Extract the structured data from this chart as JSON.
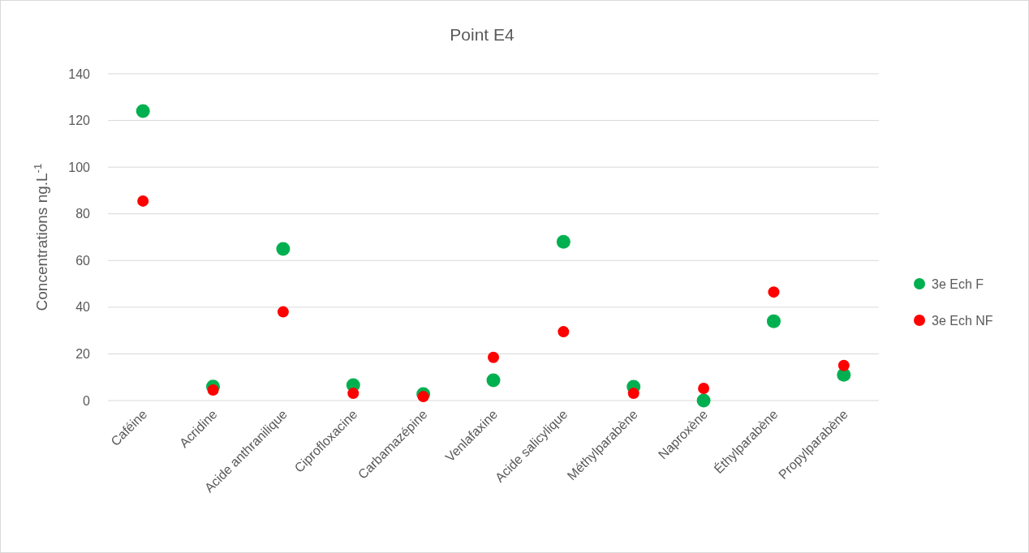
{
  "chart_data": {
    "type": "scatter",
    "title": "Point E4",
    "ylabel": "Concentrations ng.L$^{-1}$",
    "categories": [
      "Caféine",
      "Acridine",
      "Acide anthranilique",
      "Ciprofloxacine",
      "Carbamazépine",
      "Venlafaxine",
      "Acide salicylique",
      "Méthylparabène",
      "Naproxène",
      "Éthylparabène",
      "Propylparabène"
    ],
    "series": [
      {
        "name": "3e Ech F",
        "color": "#00b050",
        "values": [
          124,
          6,
          65,
          6.6,
          2.8,
          8.7,
          68,
          5.9,
          0,
          34,
          11
        ]
      },
      {
        "name": "3e Ech NF",
        "color": "#ff0000",
        "values": [
          85.5,
          4.5,
          38,
          3.1,
          1.7,
          18.5,
          29.5,
          3.1,
          5.2,
          46.5,
          15
        ]
      }
    ],
    "ylim": [
      0,
      140
    ],
    "yticks": [
      0,
      20,
      40,
      60,
      80,
      100,
      120,
      140
    ],
    "grid": "y",
    "legend": "right",
    "marker": "circle"
  }
}
